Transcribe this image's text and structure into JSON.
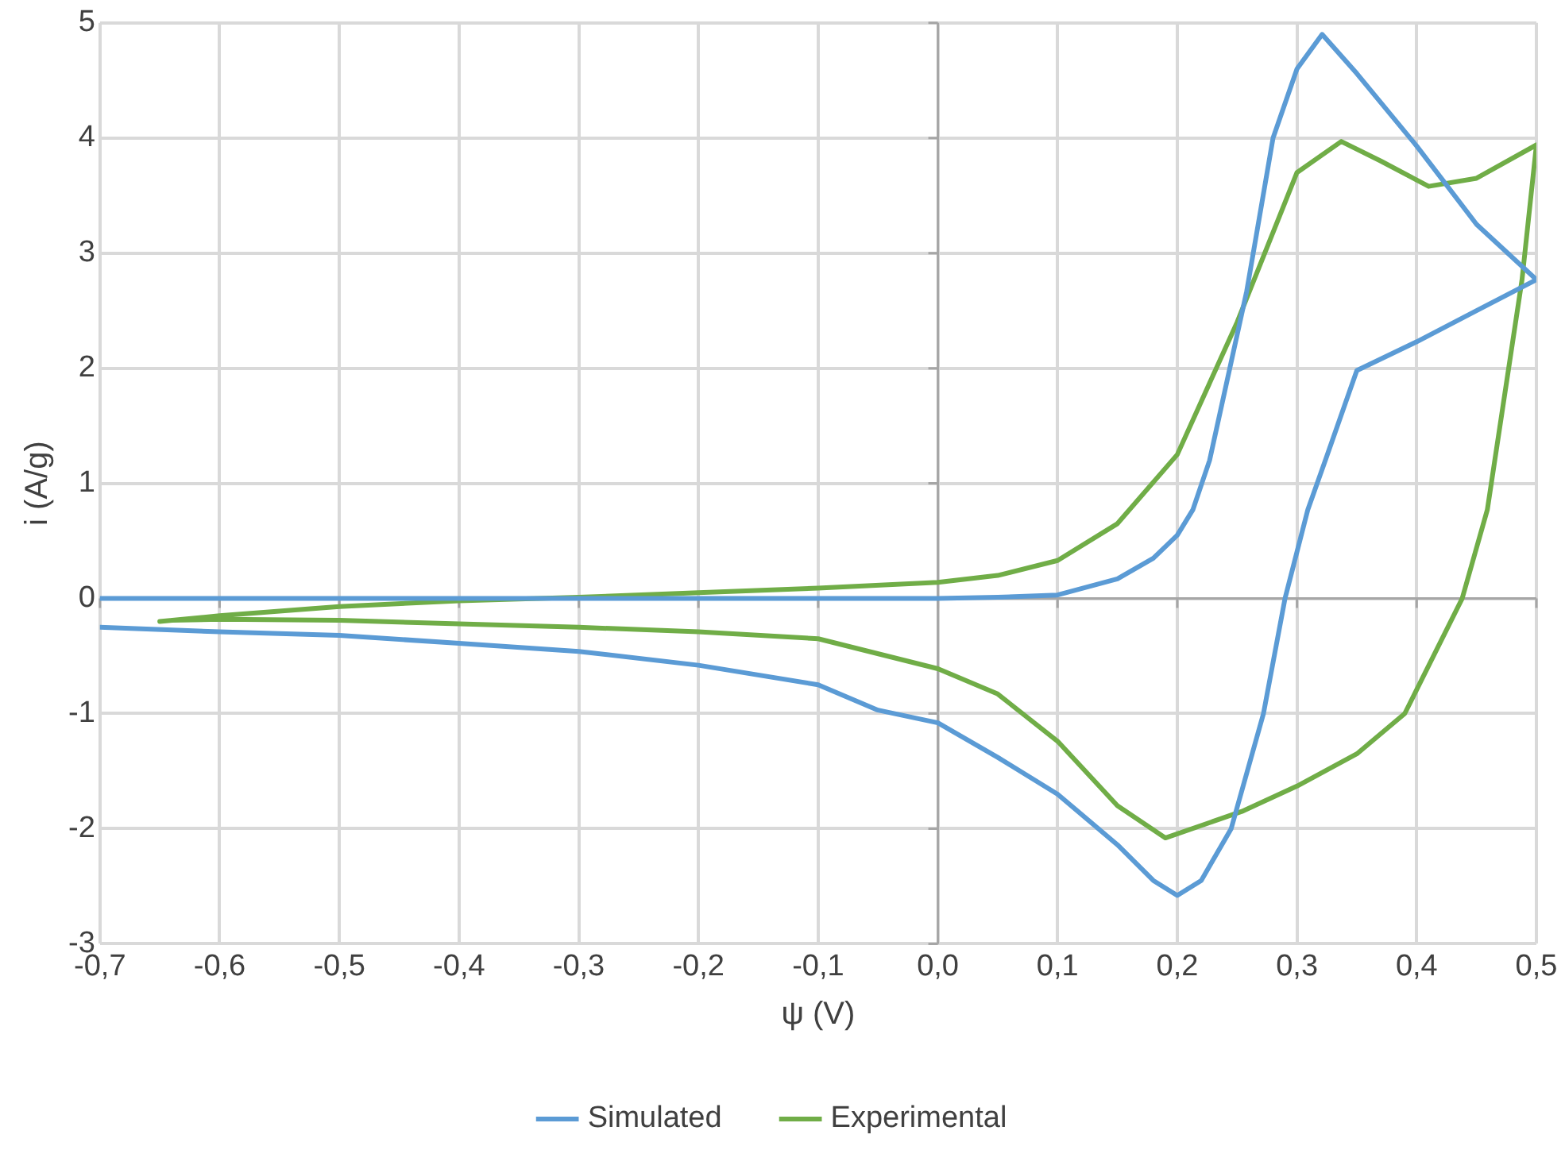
{
  "chart_data": {
    "type": "line",
    "xlabel": "ψ (V)",
    "ylabel": "i (A/g)",
    "series": [
      {
        "name": "Simulated",
        "color": "#5b9bd5",
        "x": [
          -0.7,
          -0.5,
          -0.3,
          -0.1,
          0,
          0.05,
          0.1,
          0.15,
          0.18,
          0.2,
          0.213,
          0.227,
          0.258,
          0.28,
          0.3,
          0.321,
          0.35,
          0.4,
          0.45,
          0.5,
          0.45,
          0.4,
          0.35,
          0.324,
          0.309,
          0.29,
          0.272,
          0.245,
          0.22,
          0.2,
          0.18,
          0.15,
          0.1,
          0.05,
          0,
          -0.05,
          -0.1,
          -0.2,
          -0.3,
          -0.4,
          -0.5,
          -0.6,
          -0.7
        ],
        "values": [
          0,
          0,
          0,
          0,
          0,
          0.01,
          0.03,
          0.17,
          0.35,
          0.55,
          0.77,
          1.2,
          2.67,
          4.0,
          4.6,
          4.9,
          4.56,
          3.93,
          3.25,
          2.77,
          2.5,
          2.23,
          1.98,
          1.21,
          0.77,
          0,
          -1,
          -2,
          -2.45,
          -2.58,
          -2.45,
          -2.14,
          -1.7,
          -1.38,
          -1.08,
          -0.97,
          -0.75,
          -0.58,
          -0.46,
          -0.39,
          -0.32,
          -0.29,
          -0.25
        ]
      },
      {
        "name": "Experimental",
        "color": "#70ad47",
        "x": [
          -0.65,
          -0.6,
          -0.5,
          -0.4,
          -0.3,
          -0.2,
          -0.1,
          0,
          0.05,
          0.1,
          0.15,
          0.2,
          0.25,
          0.3,
          0.337,
          0.37,
          0.41,
          0.45,
          0.5,
          0.488,
          0.459,
          0.438,
          0.39,
          0.35,
          0.3,
          0.254,
          0.19,
          0.15,
          0.1,
          0.05,
          0,
          -0.1,
          -0.2,
          -0.3,
          -0.4,
          -0.5,
          -0.6,
          -0.64
        ],
        "values": [
          -0.2,
          -0.15,
          -0.07,
          -0.02,
          0.01,
          0.05,
          0.09,
          0.14,
          0.2,
          0.33,
          0.65,
          1.25,
          2.4,
          3.7,
          3.97,
          3.8,
          3.58,
          3.65,
          3.94,
          2.77,
          0.77,
          0,
          -1,
          -1.35,
          -1.63,
          -1.85,
          -2.08,
          -1.8,
          -1.24,
          -0.83,
          -0.61,
          -0.35,
          -0.29,
          -0.25,
          -0.22,
          -0.19,
          -0.18,
          -0.19
        ]
      }
    ],
    "xlim": [
      -0.7,
      0.5
    ],
    "xticks": [
      {
        "value": -0.7,
        "label": "-0,7"
      },
      {
        "value": -0.6,
        "label": "-0,6"
      },
      {
        "value": -0.5,
        "label": "-0,5"
      },
      {
        "value": -0.4,
        "label": "-0,4"
      },
      {
        "value": -0.3,
        "label": "-0,3"
      },
      {
        "value": -0.2,
        "label": "-0,2"
      },
      {
        "value": -0.1,
        "label": "-0,1"
      },
      {
        "value": 0,
        "label": "0,0"
      },
      {
        "value": 0.1,
        "label": "0,1"
      },
      {
        "value": 0.2,
        "label": "0,2"
      },
      {
        "value": 0.3,
        "label": "0,3"
      },
      {
        "value": 0.4,
        "label": "0,4"
      },
      {
        "value": 0.5,
        "label": "0,5"
      }
    ],
    "ylim": [
      -3,
      5
    ],
    "yticks": [
      -3,
      -2,
      -1,
      0,
      1,
      2,
      3,
      4,
      5
    ],
    "grid": true,
    "legend": "bottom",
    "marker": "none",
    "line_style": "solid"
  }
}
